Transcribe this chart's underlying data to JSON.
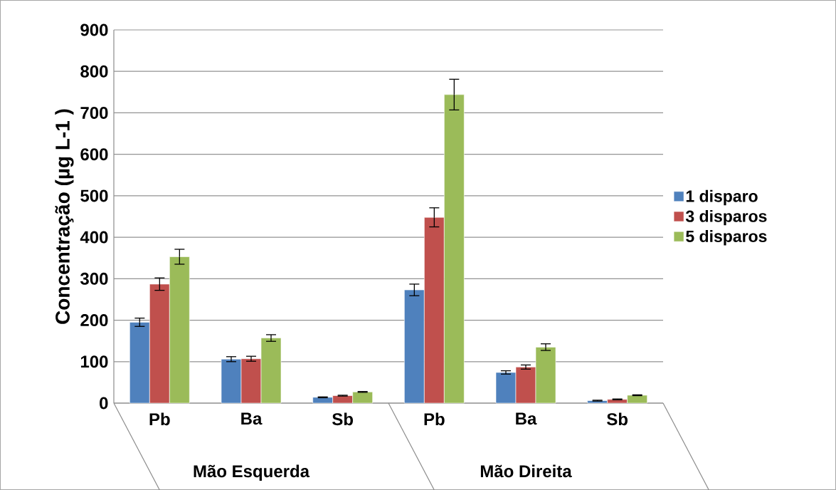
{
  "chart_data": {
    "type": "bar",
    "ylabel": "Concentração (µg L-1 )",
    "categories": [
      "Pb",
      "Ba",
      "Sb",
      "Pb",
      "Ba",
      "Sb"
    ],
    "series": [
      {
        "name": "1 disparo",
        "color": "#4f81bd",
        "values": [
          195,
          106,
          14,
          273,
          74,
          6
        ],
        "errors": [
          10,
          6,
          1,
          14,
          4,
          1
        ]
      },
      {
        "name": "3 disparos",
        "color": "#c0504d",
        "values": [
          287,
          107,
          18,
          448,
          87,
          9
        ],
        "errors": [
          15,
          6,
          1,
          23,
          5,
          1
        ]
      },
      {
        "name": "5 disparos",
        "color": "#9bbb59",
        "values": [
          353,
          157,
          27,
          744,
          135,
          19
        ],
        "errors": [
          18,
          8,
          1,
          37,
          8,
          1
        ]
      }
    ],
    "annotations": [
      "Mão Esquerda",
      "Mão Direita"
    ],
    "ylim": [
      0,
      900
    ],
    "yticks": [
      0,
      100,
      200,
      300,
      400,
      500,
      600,
      700,
      800,
      900
    ],
    "grid": "y",
    "legend": "right"
  }
}
